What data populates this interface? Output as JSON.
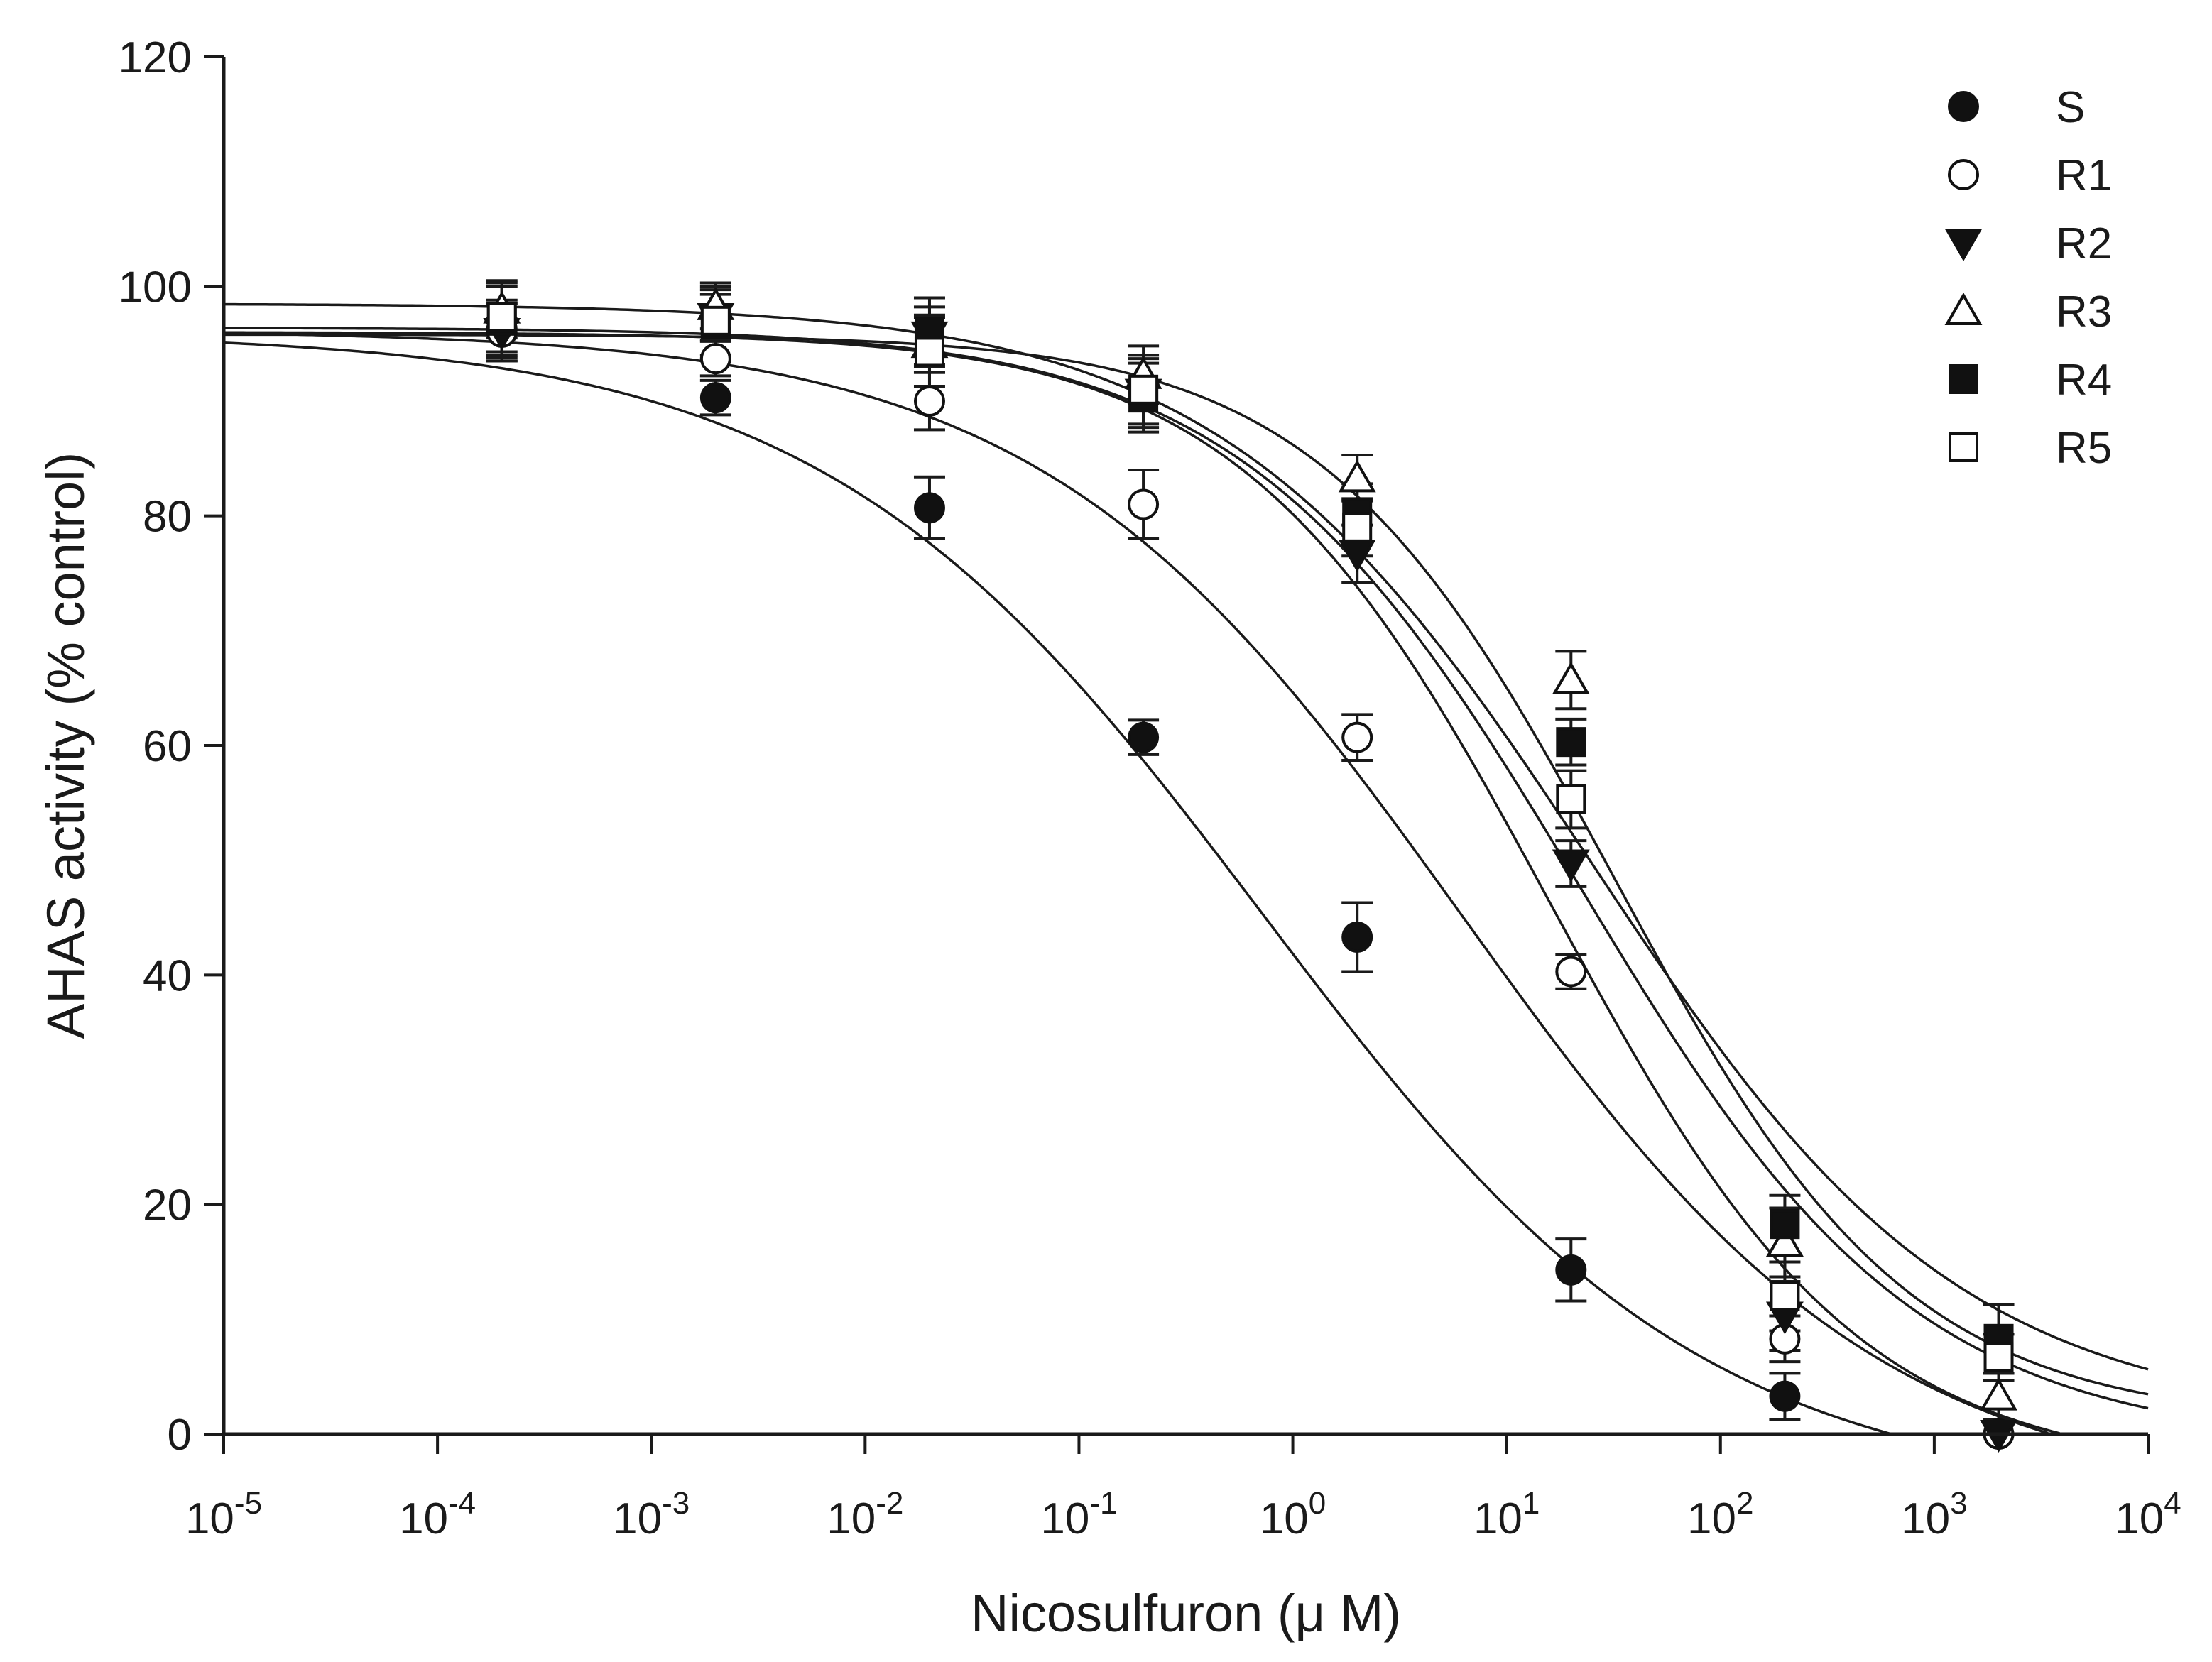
{
  "chart_data": {
    "type": "scatter",
    "title": "",
    "xlabel": "Nicosulfuron (μ M)",
    "ylabel": "AHAS activity (% control)",
    "xscale": "log",
    "xlim": [
      1e-05,
      10000
    ],
    "ylim": [
      0,
      120
    ],
    "x_ticks": [
      {
        "value": 1e-05,
        "base": "10",
        "exp": "-5"
      },
      {
        "value": 0.0001,
        "base": "10",
        "exp": "-4"
      },
      {
        "value": 0.001,
        "base": "10",
        "exp": "-3"
      },
      {
        "value": 0.01,
        "base": "10",
        "exp": "-2"
      },
      {
        "value": 0.1,
        "base": "10",
        "exp": "-1"
      },
      {
        "value": 1,
        "base": "10",
        "exp": "0"
      },
      {
        "value": 10,
        "base": "10",
        "exp": "1"
      },
      {
        "value": 100,
        "base": "10",
        "exp": "2"
      },
      {
        "value": 1000,
        "base": "10",
        "exp": "3"
      },
      {
        "value": 10000,
        "base": "10",
        "exp": "4"
      }
    ],
    "y_ticks": [
      0,
      20,
      40,
      60,
      80,
      100,
      120
    ],
    "grid": false,
    "legend_position": "top-right",
    "x": [
      0.0002,
      0.002,
      0.02,
      0.2,
      2,
      20,
      200,
      2000
    ],
    "series": [
      {
        "name": "S",
        "marker": "filled-circle",
        "values": [
          96.3,
          90.3,
          80.7,
          60.7,
          43.3,
          14.3,
          3.3,
          0.0
        ],
        "errors": [
          2.5,
          1.5,
          2.7,
          1.5,
          3.0,
          2.7,
          2.0,
          0.0
        ],
        "fit": {
          "top": 96,
          "bottom": -5.6,
          "ec50": 0.73,
          "hill": 0.42
        }
      },
      {
        "name": "R1",
        "marker": "open-circle",
        "values": [
          96.0,
          93.7,
          90.0,
          81.0,
          60.7,
          40.3,
          8.3,
          0.0
        ],
        "errors": [
          2.5,
          1.5,
          2.5,
          3.0,
          2.0,
          1.5,
          2.0,
          0.0
        ],
        "fit": {
          "top": 96.2,
          "bottom": -5.9,
          "ec50": 6.2,
          "hill": 0.44
        }
      },
      {
        "name": "R2",
        "marker": "filled-triangle-down",
        "values": [
          96.0,
          97.3,
          95.7,
          90.7,
          76.7,
          49.7,
          10.3,
          0.0
        ],
        "errors": [
          2.5,
          2.0,
          2.5,
          3.0,
          2.5,
          2.0,
          3.0,
          0.0
        ],
        "fit": {
          "top": 96,
          "bottom": -3.5,
          "ec50": 16,
          "hill": 0.6
        }
      },
      {
        "name": "R3",
        "marker": "open-triangle-up",
        "values": [
          98.0,
          98.3,
          95.0,
          92.3,
          83.3,
          65.7,
          16.7,
          3.3
        ],
        "errors": [
          2.5,
          2.0,
          2.5,
          2.5,
          2.0,
          2.5,
          3.0,
          2.0
        ],
        "fit": {
          "top": 95.8,
          "bottom": 1.0,
          "ec50": 32,
          "hill": 0.63
        }
      },
      {
        "name": "R4",
        "marker": "filled-square",
        "values": [
          97.0,
          96.7,
          96.0,
          90.3,
          80.3,
          60.3,
          18.3,
          8.3
        ],
        "errors": [
          3.0,
          3.0,
          3.0,
          3.0,
          2.5,
          2.0,
          2.5,
          3.0
        ],
        "fit": {
          "top": 96.4,
          "bottom": -1.0,
          "ec50": 22,
          "hill": 0.55
        }
      },
      {
        "name": "R5",
        "marker": "open-square",
        "values": [
          97.3,
          97.0,
          94.3,
          91.0,
          79.0,
          55.3,
          12.0,
          6.7
        ],
        "errors": [
          3.0,
          3.0,
          3.0,
          3.0,
          2.5,
          2.5,
          3.0,
          2.0
        ],
        "fit": {
          "top": 98.5,
          "bottom": 1.0,
          "ec50": 25,
          "hill": 0.5
        }
      }
    ]
  }
}
